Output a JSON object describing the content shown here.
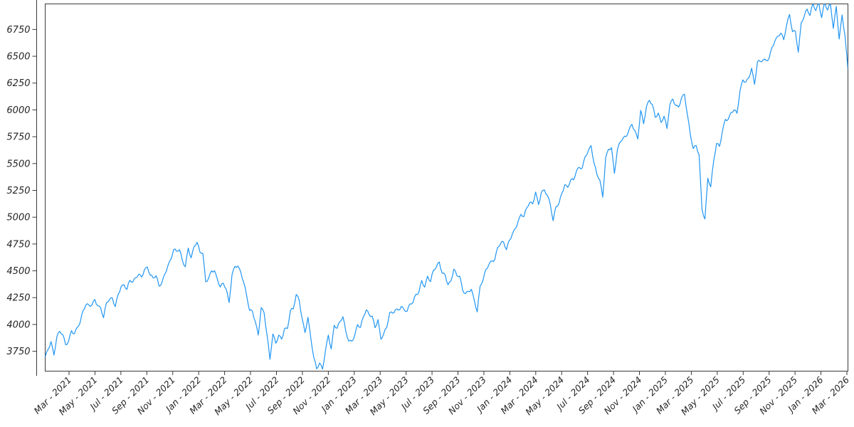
{
  "figure": {
    "background": "#ffffff"
  },
  "chart_data": {
    "type": "line",
    "grid": false,
    "legend": null,
    "line_color": "#2196f3",
    "axis_color": "#3a3a3a",
    "tick_label_color": "#262626",
    "ylim": [
      3565,
      6988
    ],
    "y_tick_values": [
      3750,
      4000,
      4250,
      4500,
      4750,
      5000,
      5250,
      5500,
      5750,
      6000,
      6250,
      6500,
      6750
    ],
    "y_tick_labels": [
      "3750",
      "4000",
      "4250",
      "4500",
      "4750",
      "5000",
      "5250",
      "5500",
      "5750",
      "6000",
      "6250",
      "6500",
      "6750"
    ],
    "x_tick_labels": [
      "Mar - 2021",
      "May - 2021",
      "Jul - 2021",
      "Sep - 2021",
      "Nov - 2021",
      "Jan - 2022",
      "Mar - 2022",
      "May - 2022",
      "Jul - 2022",
      "Sep - 2022",
      "Nov - 2022",
      "Jan - 2023",
      "Mar - 2023",
      "May - 2023",
      "Jul - 2023",
      "Sep - 2023",
      "Nov - 2023",
      "Jan - 2024",
      "Mar - 2024",
      "May - 2024",
      "Jul - 2024",
      "Sep - 2024",
      "Nov - 2024",
      "Jan - 2025",
      "Mar - 2025",
      "May - 2025",
      "Jul - 2025",
      "Sep - 2025",
      "Nov - 2025",
      "Jan - 2026",
      "Mar - 2026"
    ],
    "x_start": "Jan 2021",
    "x_end": "Mar 2026",
    "sampling": "weekly",
    "values": [
      3700,
      3768,
      3841,
      3714,
      3886,
      3935,
      3907,
      3811,
      3842,
      3943,
      3913,
      3975,
      4020,
      4129,
      4185,
      4180,
      4181,
      4233,
      4174,
      4156,
      4063,
      4204,
      4230,
      4247,
      4166,
      4281,
      4352,
      4370,
      4327,
      4412,
      4395,
      4437,
      4468,
      4442,
      4510,
      4536,
      4459,
      4433,
      4455,
      4357,
      4391,
      4471,
      4545,
      4605,
      4698,
      4683,
      4698,
      4595,
      4538,
      4712,
      4621,
      4726,
      4766,
      4677,
      4663,
      4398,
      4432,
      4500,
      4501,
      4419,
      4349,
      4385,
      4329,
      4204,
      4463,
      4543,
      4545,
      4488,
      4393,
      4272,
      4131,
      4123,
      4024,
      3901,
      4158,
      4108,
      3901,
      3675,
      3912,
      3825,
      3900,
      3863,
      3961,
      3962,
      4130,
      4145,
      4280,
      4228,
      4058,
      3924,
      4067,
      3873,
      3693,
      3586,
      3640,
      3583,
      3753,
      3901,
      3771,
      3993,
      3965,
      4026,
      4072,
      3934,
      3845,
      3844,
      3895,
      3999,
      3973,
      4071,
      4136,
      4090,
      4079,
      3970,
      4046,
      3862,
      3917,
      3971,
      4109,
      4105,
      4138,
      4134,
      4169,
      4136,
      4124,
      4192,
      4205,
      4282,
      4299,
      4410,
      4348,
      4450,
      4399,
      4505,
      4536,
      4582,
      4478,
      4464,
      4370,
      4406,
      4516,
      4457,
      4450,
      4320,
      4288,
      4309,
      4328,
      4224,
      4117,
      4358,
      4415,
      4514,
      4559,
      4594,
      4604,
      4719,
      4754,
      4770,
      4697,
      4784,
      4840,
      4891,
      4959,
      5027,
      5006,
      5089,
      5137,
      5124,
      5234,
      5117,
      5234,
      5254,
      5204,
      5123,
      4967,
      5100,
      5128,
      5223,
      5303,
      5278,
      5346,
      5347,
      5431,
      5464,
      5460,
      5567,
      5615,
      5667,
      5505,
      5399,
      5346,
      5186,
      5554,
      5634,
      5648,
      5408,
      5626,
      5703,
      5738,
      5751,
      5815,
      5865,
      5808,
      5729,
      5996,
      5871,
      6032,
      6090,
      6051,
      5931,
      5971,
      5882,
      5942,
      5827,
      6049,
      6101,
      6041,
      6026,
      6115,
      6147,
      5955,
      5770,
      5639,
      5668,
      5581,
      5074,
      4983,
      5363,
      5283,
      5525,
      5687,
      5660,
      5803,
      5912,
      5912,
      5977,
      6000,
      5968,
      6173,
      6280,
      6260,
      6297,
      6389,
      6238,
      6449,
      6450,
      6467,
      6460,
      6482,
      6584,
      6644,
      6688,
      6716,
      6654,
      6792,
      6890,
      6729,
      6734,
      6538,
      6813,
      6871,
      6940,
      6880,
      6995,
      6925,
      7000,
      6860,
      7005,
      6930,
      6990,
      6760,
      6965,
      6660,
      6885,
      6690,
      6380
    ]
  }
}
